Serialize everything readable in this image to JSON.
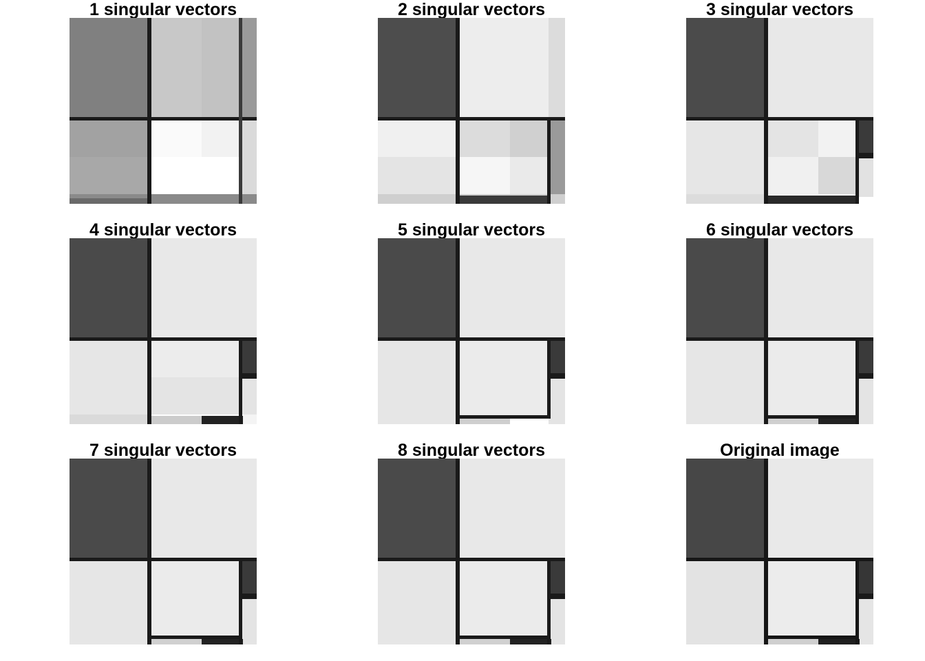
{
  "panels": [
    {
      "title": "1 singular vectors",
      "rank": 1
    },
    {
      "title": "2 singular vectors",
      "rank": 2
    },
    {
      "title": "3 singular vectors",
      "rank": 3
    },
    {
      "title": "4 singular vectors",
      "rank": 4
    },
    {
      "title": "5 singular vectors",
      "rank": 5
    },
    {
      "title": "6 singular vectors",
      "rank": 6
    },
    {
      "title": "7 singular vectors",
      "rank": 7
    },
    {
      "title": "8 singular vectors",
      "rank": 8
    },
    {
      "title": "Original image",
      "rank": "original"
    }
  ],
  "colors": {
    "background": "#ffffff",
    "title_text": "#000000",
    "line": "#1a1a1a",
    "dark_block": "#4a4a4a",
    "light_block": "#e6e6e6"
  }
}
